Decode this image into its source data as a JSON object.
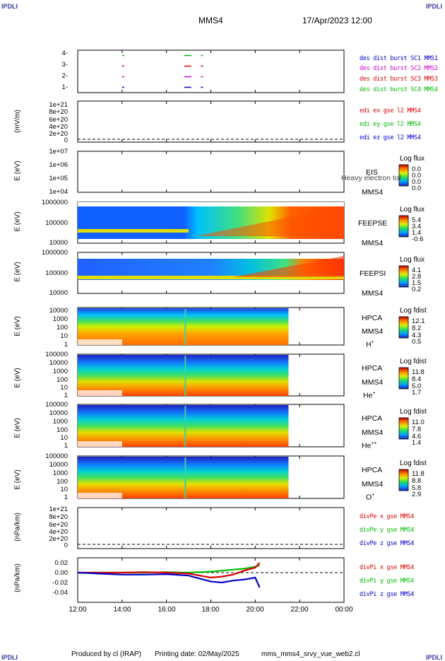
{
  "header": {
    "corner_left": "IPDLI",
    "corner_right": "IPDLI",
    "title": "MMS4",
    "datetime": "17/Apr/2023 12:00"
  },
  "footer": {
    "corner_left": "IPDLI",
    "corner_right": "IPDLI",
    "produced": "Produced by cl (IRAP)",
    "printing": "Printing date: 02/May/2025",
    "file": "mms_mms4_srvy_vue_web2.cl"
  },
  "colors": {
    "mms1": "#0000cc",
    "mms2": "#cc00cc",
    "mms3": "#dd0000",
    "mms4": "#00bb00"
  },
  "chart_data": [
    {
      "type": "line",
      "panel": "des-dist-burst",
      "yticks": [
        "4-",
        "3-",
        "2-",
        "1-"
      ],
      "legend": [
        "des dist burst SC1 MMS1",
        "des dist burst SC2 MMS2",
        "des dist burst SC3 MMS3",
        "des dist burst SC4 MMS4"
      ],
      "series": [
        {
          "name": "des dist burst SC4 MMS4",
          "y": 4,
          "x": [
            14.0,
            16.8,
            17.55
          ]
        },
        {
          "name": "des dist burst SC3 MMS3",
          "y": 3,
          "x": [
            14.0,
            16.8,
            17.55
          ]
        },
        {
          "name": "des dist burst SC2 MMS2",
          "y": 2,
          "x": [
            14.0,
            16.8,
            17.55
          ]
        },
        {
          "name": "des dist burst SC1 MMS1",
          "y": 1,
          "x": [
            14.0,
            16.8,
            17.55
          ]
        }
      ]
    },
    {
      "type": "line",
      "panel": "edi",
      "ylabel": "(mV/m)",
      "yticks": [
        "1e+21",
        "8e+20",
        "6e+20",
        "4e+20",
        "2e+20",
        "0"
      ],
      "legend": [
        "edi ex gse l2 MMS4",
        "edi ey gse l2 MMS4",
        "edi ez gse l2 MMS4"
      ]
    },
    {
      "type": "heatmap",
      "panel": "eis",
      "ylabel": "E (eV)",
      "yticks": [
        "1e+07",
        "1e+06",
        "1e+05",
        "1e+04"
      ],
      "instrument": [
        "EIS",
        "MMS4"
      ],
      "overlap_label": "Heavy electron tof",
      "colorbar": {
        "title": "Log flux",
        "ticks": [
          "0.0",
          "0.0",
          "0.0",
          "0.0"
        ]
      }
    },
    {
      "type": "heatmap",
      "panel": "feeps-e",
      "ylabel": "E (eV)",
      "yticks": [
        "1000000",
        "100000",
        "10000"
      ],
      "instrument": [
        "FEEPSE",
        "MMS4"
      ],
      "colorbar": {
        "title": "Log flux",
        "ticks": [
          "5.4",
          "3.4",
          "1.4",
          "-0.6"
        ]
      }
    },
    {
      "type": "heatmap",
      "panel": "feeps-i",
      "ylabel": "E (eV)",
      "yticks": [
        "1000000",
        "100000",
        "10000"
      ],
      "instrument": [
        "FEEPSI",
        "MMS4"
      ],
      "colorbar": {
        "title": "Log flux",
        "ticks": [
          "4.1",
          "2.8",
          "1.5",
          "0.2"
        ]
      }
    },
    {
      "type": "heatmap",
      "panel": "hpca-h",
      "ylabel": "E (eV)",
      "yticks": [
        "10000",
        "1000",
        "100",
        "10",
        "1"
      ],
      "instrument": [
        "HPCA",
        "MMS4"
      ],
      "species": "H",
      "charge": "+",
      "colorbar": {
        "title": "Log fdist",
        "ticks": [
          "12.1",
          "8.2",
          "4.3",
          "0.5"
        ]
      }
    },
    {
      "type": "heatmap",
      "panel": "hpca-he",
      "ylabel": "E (eV)",
      "yticks": [
        "100000",
        "10000",
        "1000",
        "100",
        "10",
        "1"
      ],
      "instrument": [
        "HPCA",
        "MMS4"
      ],
      "species": "He",
      "charge": "+",
      "colorbar": {
        "title": "Log fdist",
        "ticks": [
          "11.8",
          "8.4",
          "5.0",
          "1.7"
        ]
      }
    },
    {
      "type": "heatmap",
      "panel": "hpca-he2",
      "ylabel": "E (eV)",
      "yticks": [
        "100000",
        "10000",
        "1000",
        "100",
        "10",
        "1"
      ],
      "instrument": [
        "HPCA",
        "MMS4"
      ],
      "species": "He",
      "charge": "++",
      "colorbar": {
        "title": "Log fdist",
        "ticks": [
          "11.0",
          "7.8",
          "4.6",
          "1.4"
        ]
      }
    },
    {
      "type": "heatmap",
      "panel": "hpca-o",
      "ylabel": "E (eV)",
      "yticks": [
        "100000",
        "10000",
        "1000",
        "100",
        "10",
        "1"
      ],
      "instrument": [
        "HPCA",
        "MMS4"
      ],
      "species": "O",
      "charge": "+",
      "colorbar": {
        "title": "Log fdist",
        "ticks": [
          "11.8",
          "8.8",
          "5.8",
          "2.9"
        ]
      }
    },
    {
      "type": "line",
      "panel": "divpe",
      "ylabel": "(nPa/km)",
      "yticks": [
        "1e+21",
        "8e+20",
        "6e+20",
        "4e+20",
        "2e+20",
        "0"
      ],
      "legend": [
        "divPe x gse MMS4",
        "divPe y gse MMS4",
        "divPe z gse MMS4"
      ]
    },
    {
      "type": "line",
      "panel": "divpi",
      "ylabel": "(nPa/km)",
      "yticks": [
        "0.02",
        "0.00",
        "-0.02",
        "-0.04"
      ],
      "legend": [
        "divPi x gse MMS4",
        "divPi y gse MMS4",
        "divPi z gse MMS4"
      ],
      "x": [
        12,
        13,
        14,
        15,
        16,
        17,
        17.5,
        18,
        18.5,
        19,
        19.5,
        20,
        20.2
      ],
      "series": [
        {
          "name": "divPi x gse MMS4",
          "values": [
            0.0,
            0.0,
            0.0,
            0.001,
            0.0,
            -0.002,
            -0.006,
            -0.01,
            -0.008,
            -0.004,
            0.004,
            0.01,
            0.02
          ]
        },
        {
          "name": "divPi y gse MMS4",
          "values": [
            0.0,
            0.0,
            0.0,
            0.0,
            0.001,
            0.0,
            0.001,
            0.002,
            0.004,
            0.006,
            0.008,
            0.012,
            0.015
          ]
        },
        {
          "name": "divPi z gse MMS4",
          "values": [
            0.0,
            -0.002,
            -0.004,
            -0.004,
            -0.003,
            -0.006,
            -0.012,
            -0.018,
            -0.02,
            -0.016,
            -0.014,
            -0.01,
            -0.03
          ]
        }
      ]
    }
  ],
  "xaxis": {
    "ticks": [
      "12:00",
      "14:00",
      "16:00",
      "18:00",
      "20:00",
      "22:00",
      "00:00"
    ],
    "range": [
      12,
      24
    ]
  }
}
